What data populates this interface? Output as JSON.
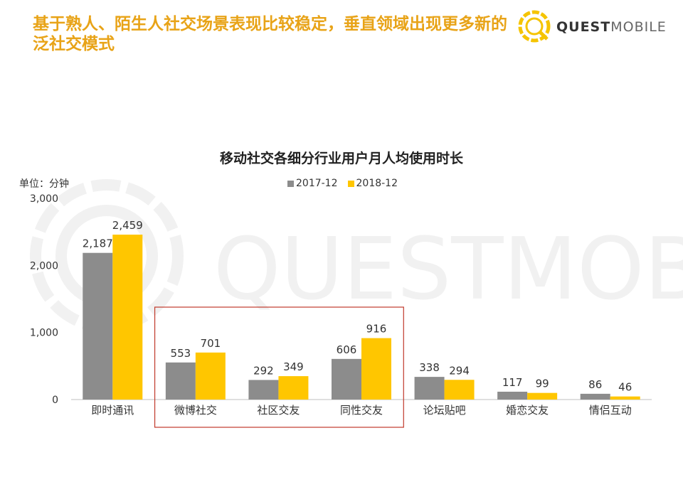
{
  "headline": "基于熟人、陌生人社交场景表现比较稳定，垂直领域出现更多新的泛社交模式",
  "logo": {
    "name_bold": "QUEST",
    "name_light": "MOBILE"
  },
  "watermark_text": "QUESTMOBILE",
  "chart_data": {
    "type": "bar",
    "title": "移动社交各细分行业用户月人均使用时长",
    "unit_label": "单位：分钟",
    "categories": [
      "即时通讯",
      "微博社交",
      "社区交友",
      "同性交友",
      "论坛贴吧",
      "婚恋交友",
      "情侣互动"
    ],
    "series": [
      {
        "name": "2017-12",
        "values": [
          2187,
          553,
          292,
          606,
          338,
          117,
          86
        ],
        "value_labels": [
          "2,187",
          "553",
          "292",
          "606",
          "338",
          "117",
          "86"
        ]
      },
      {
        "name": "2018-12",
        "values": [
          2459,
          701,
          349,
          916,
          294,
          99,
          46
        ],
        "value_labels": [
          "2,459",
          "701",
          "349",
          "916",
          "294",
          "99",
          "46"
        ]
      }
    ],
    "ylim": [
      0,
      3000
    ],
    "yticks": [
      0,
      1000,
      2000,
      3000
    ],
    "ytick_labels": [
      "0",
      "1,000",
      "2,000",
      "3,000"
    ],
    "grid": false,
    "legend_position": "top-center",
    "highlight_categories": [
      "微博社交",
      "社区交友",
      "同性交友"
    ],
    "colors": {
      "2017-12": "#8C8C8C",
      "2018-12": "#FFC600",
      "highlight_box": "#C0392B"
    }
  }
}
